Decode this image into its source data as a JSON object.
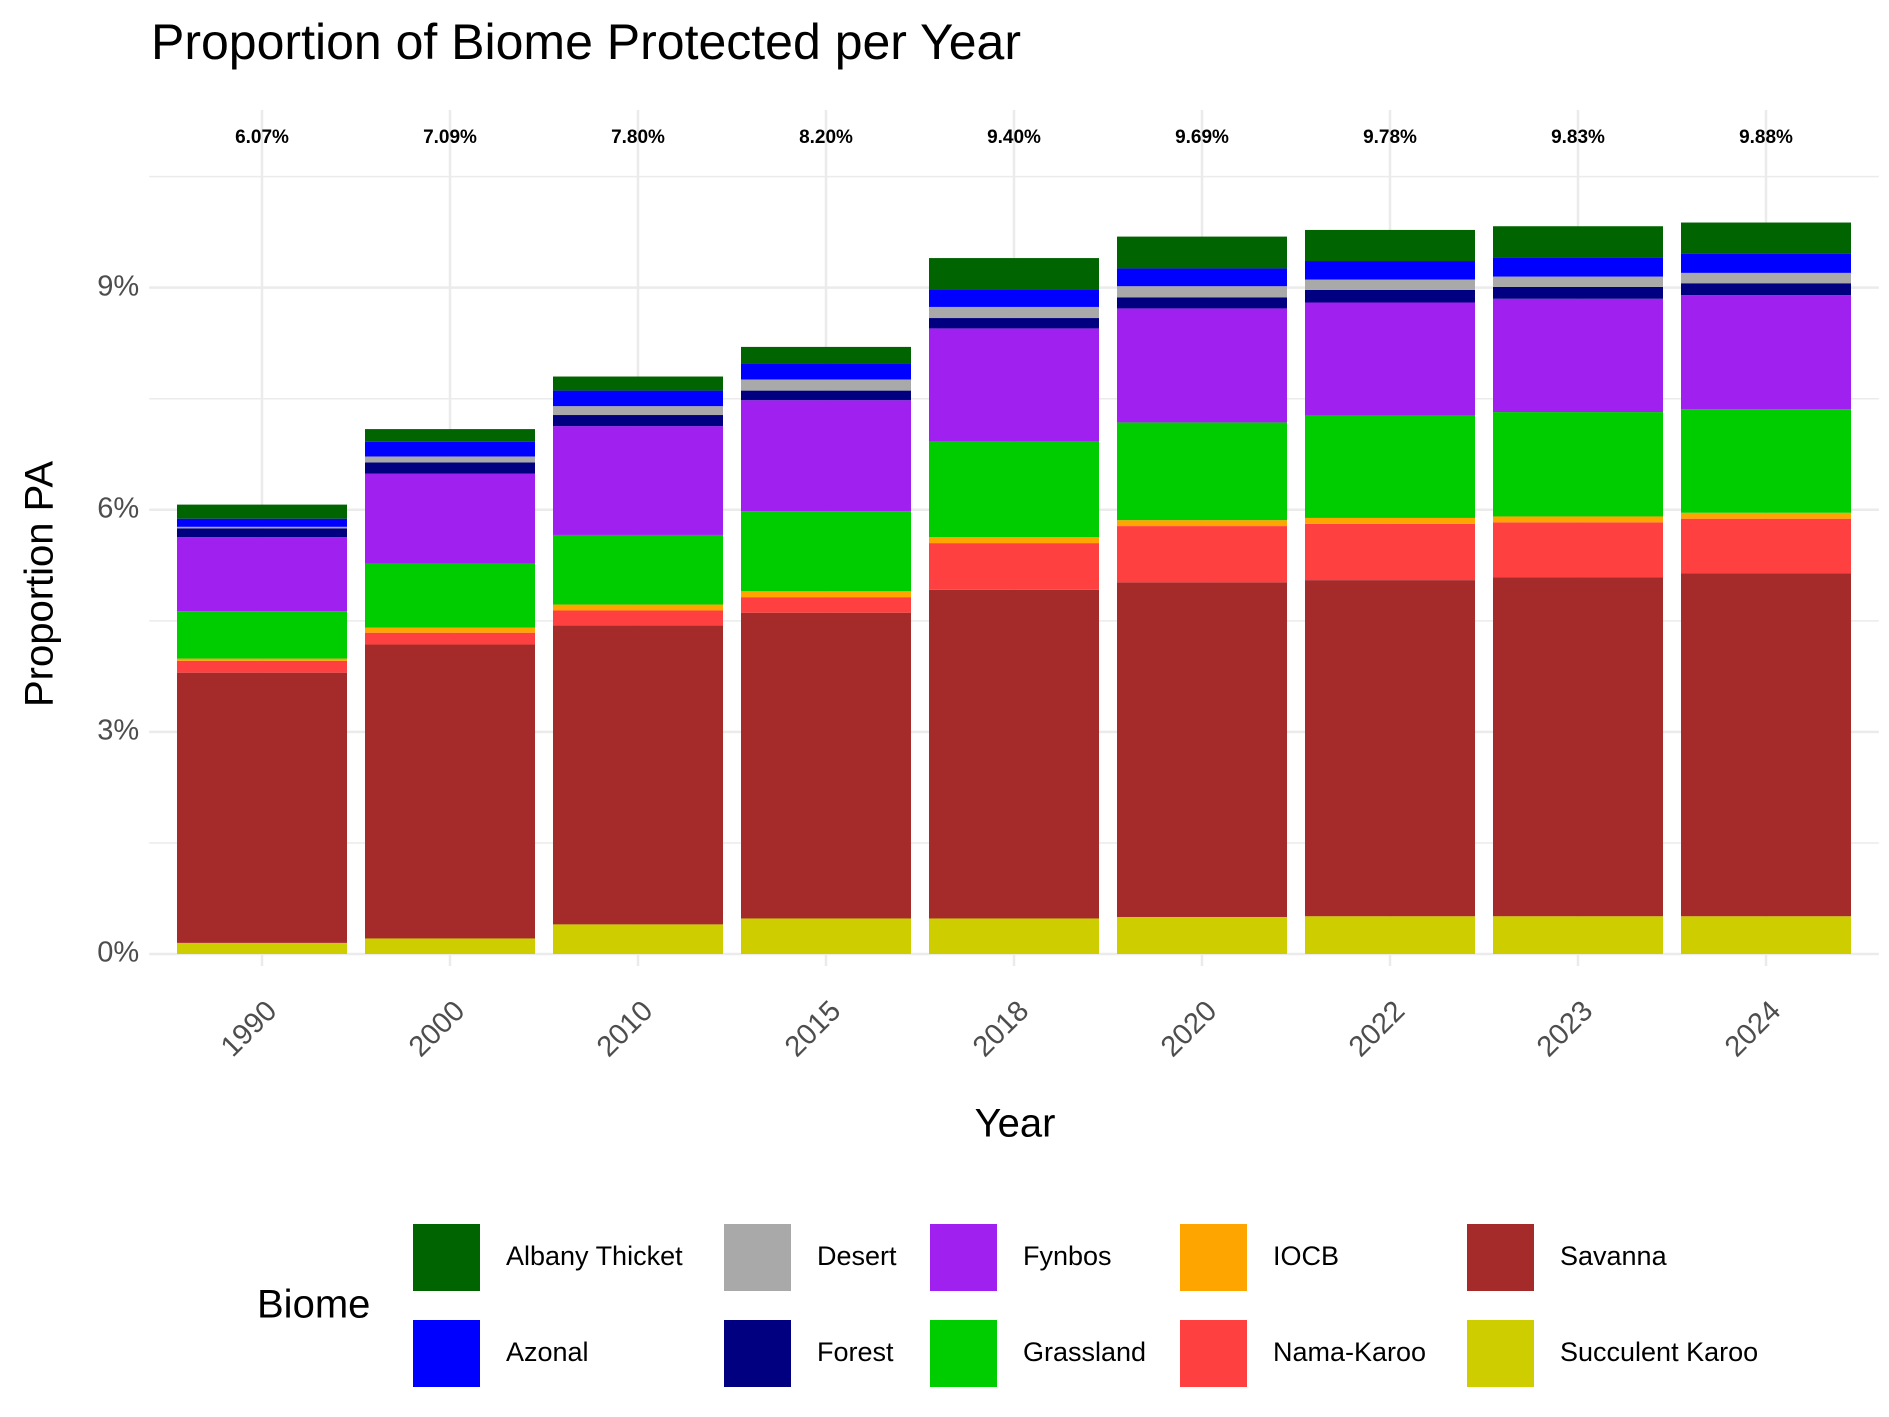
{
  "chart_data": {
    "type": "stacked_bar",
    "title": "Proportion of Biome Protected per Year",
    "x_label": "Year",
    "y_label": "Proportion PA",
    "legend_title": "Biome",
    "categories": [
      "1990",
      "2000",
      "2010",
      "2015",
      "2018",
      "2020",
      "2022",
      "2023",
      "2024"
    ],
    "series": [
      {
        "name": "Albany Thicket",
        "color": "#006400",
        "values": [
          0.19,
          0.17,
          0.19,
          0.22,
          0.42,
          0.43,
          0.42,
          0.42,
          0.42
        ]
      },
      {
        "name": "Azonal",
        "color": "#0000FF",
        "values": [
          0.11,
          0.2,
          0.21,
          0.22,
          0.24,
          0.24,
          0.25,
          0.26,
          0.26
        ]
      },
      {
        "name": "Desert",
        "color": "#A9A9A9",
        "values": [
          0.02,
          0.08,
          0.12,
          0.15,
          0.15,
          0.15,
          0.14,
          0.14,
          0.14
        ]
      },
      {
        "name": "Forest",
        "color": "#000080",
        "values": [
          0.12,
          0.15,
          0.15,
          0.13,
          0.14,
          0.15,
          0.17,
          0.16,
          0.16
        ]
      },
      {
        "name": "Fynbos",
        "color": "#A020F0",
        "values": [
          1.0,
          1.22,
          1.47,
          1.5,
          1.53,
          1.54,
          1.53,
          1.53,
          1.54
        ]
      },
      {
        "name": "Grassland",
        "color": "#00CD00",
        "values": [
          0.64,
          0.86,
          0.94,
          1.08,
          1.29,
          1.32,
          1.38,
          1.41,
          1.4
        ]
      },
      {
        "name": "IOCB",
        "color": "#FFA500",
        "values": [
          0.03,
          0.07,
          0.08,
          0.08,
          0.08,
          0.08,
          0.08,
          0.08,
          0.08
        ]
      },
      {
        "name": "Nama-Karoo",
        "color": "#FF4040",
        "values": [
          0.16,
          0.16,
          0.2,
          0.21,
          0.63,
          0.76,
          0.76,
          0.74,
          0.74
        ]
      },
      {
        "name": "Savanna",
        "color": "#A52A2A",
        "values": [
          3.65,
          3.97,
          4.04,
          4.13,
          4.44,
          4.52,
          4.54,
          4.58,
          4.63
        ]
      },
      {
        "name": "Succulent Karoo",
        "color": "#CDCD00",
        "values": [
          0.15,
          0.21,
          0.4,
          0.48,
          0.48,
          0.5,
          0.51,
          0.51,
          0.51
        ]
      }
    ],
    "totals": {
      "values": [
        6.07,
        7.09,
        7.8,
        8.2,
        9.4,
        9.69,
        9.78,
        9.83,
        9.88
      ],
      "value_labels": [
        "6.07%",
        "7.09%",
        "7.80%",
        "8.20%",
        "9.40%",
        "9.69%",
        "9.78%",
        "9.83%",
        "9.88%"
      ]
    },
    "ylim": [
      0,
      11.4
    ],
    "yticks": [
      {
        "value": 0,
        "label": "0%"
      },
      {
        "value": 3,
        "label": "3%"
      },
      {
        "value": 6,
        "label": "6%"
      },
      {
        "value": 9,
        "label": "9%"
      }
    ],
    "minor_yticks": [
      1.5,
      4.5,
      7.5,
      10.5
    ],
    "grid": true
  }
}
